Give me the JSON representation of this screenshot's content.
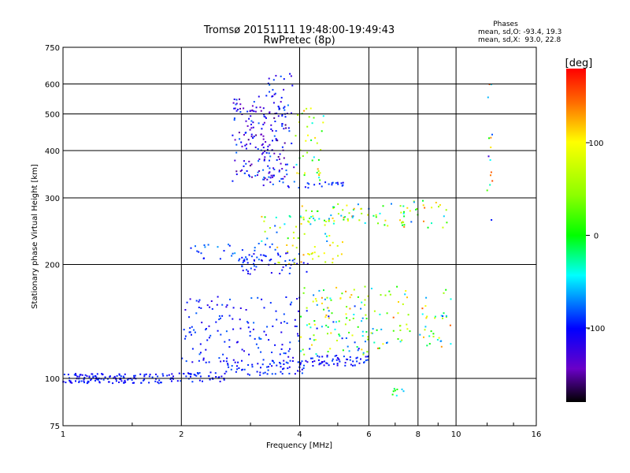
{
  "chart_data": {
    "type": "scatter",
    "title": "Tromsø 20151111 19:48:00-19:49:43",
    "subtitle": "RwPretec (8p)",
    "xlabel": "Frequency [MHz]",
    "ylabel": "Stationary phase Virtual Height [km]",
    "x_scale": "log",
    "y_scale": "log",
    "xlim": [
      1,
      16
    ],
    "ylim": [
      75,
      750
    ],
    "x_ticks": [
      1,
      2,
      4,
      6,
      8,
      10,
      16
    ],
    "x_tick_labels": [
      "1",
      "2",
      "4",
      "6",
      "8",
      "10",
      "16"
    ],
    "y_ticks": [
      75,
      100,
      200,
      300,
      400,
      500,
      600,
      750
    ],
    "y_tick_labels": [
      "75",
      "100",
      "200",
      "300",
      "400",
      "500",
      "600",
      "750"
    ],
    "grid": true,
    "info_box": {
      "heading": "Phases",
      "lines": [
        "mean, sd,O: -93.4, 19.3",
        "mean, sd,X:  93.0, 22.8"
      ]
    },
    "colorbar": {
      "label": "[deg]",
      "range": [
        -180,
        180
      ],
      "ticks": [
        100,
        0,
        -100
      ],
      "tick_labels": [
        "100",
        "0",
        "-100"
      ]
    },
    "clusters": [
      {
        "x": [
          1.0,
          1.9
        ],
        "y": [
          97,
          103
        ],
        "phase": [
          -110,
          -85
        ],
        "count": 130
      },
      {
        "x": [
          1.9,
          2.6
        ],
        "y": [
          98,
          104
        ],
        "phase": [
          -110,
          -85
        ],
        "count": 40
      },
      {
        "x": [
          2.6,
          4.2
        ],
        "y": [
          102,
          112
        ],
        "phase": [
          -110,
          -80
        ],
        "count": 70
      },
      {
        "x": [
          4.0,
          6.0
        ],
        "y": [
          108,
          115
        ],
        "phase": [
          -115,
          -80
        ],
        "count": 60
      },
      {
        "x": [
          2.0,
          4.0
        ],
        "y": [
          110,
          165
        ],
        "phase": [
          -115,
          -75
        ],
        "count": 140
      },
      {
        "x": [
          4.0,
          6.2
        ],
        "y": [
          115,
          175
        ],
        "phase": [
          -100,
          130
        ],
        "count": 110
      },
      {
        "x": [
          6.0,
          9.8
        ],
        "y": [
          120,
          175
        ],
        "phase": [
          -90,
          150
        ],
        "count": 70
      },
      {
        "x": [
          2.8,
          4.2
        ],
        "y": [
          188,
          215
        ],
        "phase": [
          -115,
          -80
        ],
        "count": 60
      },
      {
        "x": [
          2.1,
          3.5
        ],
        "y": [
          205,
          230
        ],
        "phase": [
          -100,
          -60
        ],
        "count": 30
      },
      {
        "x": [
          3.5,
          5.2
        ],
        "y": [
          200,
          230
        ],
        "phase": [
          60,
          130
        ],
        "count": 30
      },
      {
        "x": [
          3.2,
          4.8
        ],
        "y": [
          230,
          270
        ],
        "phase": [
          -100,
          120
        ],
        "count": 30
      },
      {
        "x": [
          4.0,
          6.0
        ],
        "y": [
          255,
          290
        ],
        "phase": [
          -80,
          140
        ],
        "count": 50
      },
      {
        "x": [
          6.0,
          9.5
        ],
        "y": [
          250,
          295
        ],
        "phase": [
          -90,
          140
        ],
        "count": 45
      },
      {
        "x": [
          2.7,
          3.7
        ],
        "y": [
          330,
          560
        ],
        "phase": [
          -150,
          -75
        ],
        "count": 170
      },
      {
        "x": [
          3.2,
          3.9
        ],
        "y": [
          320,
          640
        ],
        "phase": [
          -130,
          -70
        ],
        "count": 60
      },
      {
        "x": [
          3.9,
          4.6
        ],
        "y": [
          320,
          520
        ],
        "phase": [
          -60,
          140
        ],
        "count": 40
      },
      {
        "x": [
          3.9,
          5.2
        ],
        "y": [
          318,
          330
        ],
        "phase": [
          -110,
          -80
        ],
        "count": 20
      },
      {
        "x": [
          12.0,
          12.4
        ],
        "y": [
          250,
          600
        ],
        "phase": [
          -120,
          170
        ],
        "count": 15
      },
      {
        "x": [
          6.0,
          7.5
        ],
        "y": [
          90,
          96
        ],
        "phase": [
          -60,
          20
        ],
        "count": 8
      }
    ]
  }
}
